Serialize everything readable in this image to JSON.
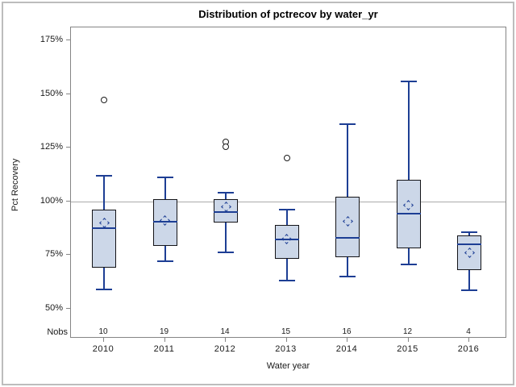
{
  "chart_data": {
    "type": "boxplot",
    "title": "Distribution of pctrecov by water_yr",
    "xlabel": "Water year",
    "ylabel": "Pct Recovery",
    "nobs_label": "Nobs",
    "y_ticks": [
      {
        "value": 50,
        "label": "50%"
      },
      {
        "value": 75,
        "label": "75%"
      },
      {
        "value": 100,
        "label": "100%"
      },
      {
        "value": 125,
        "label": "125%"
      },
      {
        "value": 150,
        "label": "150%"
      },
      {
        "value": 175,
        "label": "175%"
      }
    ],
    "ylim": [
      50,
      175
    ],
    "reference_line": 100,
    "grid": "off",
    "categories": [
      "2010",
      "2011",
      "2012",
      "2013",
      "2014",
      "2015",
      "2016"
    ],
    "nobs": [
      10,
      19,
      14,
      15,
      16,
      12,
      4
    ],
    "boxes": [
      {
        "year": "2010",
        "nobs": 10,
        "whisker_low": 59,
        "q1": 69,
        "median": 87.5,
        "q3": 96,
        "whisker_high": 112,
        "mean": 90,
        "outliers": [
          147
        ]
      },
      {
        "year": "2011",
        "nobs": 19,
        "whisker_low": 72,
        "q1": 79,
        "median": 90.5,
        "q3": 101,
        "whisker_high": 111,
        "mean": 91,
        "outliers": []
      },
      {
        "year": "2012",
        "nobs": 14,
        "whisker_low": 76,
        "q1": 90,
        "median": 95,
        "q3": 101,
        "whisker_high": 104,
        "mean": 97.5,
        "outliers": [
          127.5,
          125.5
        ]
      },
      {
        "year": "2013",
        "nobs": 15,
        "whisker_low": 63,
        "q1": 73,
        "median": 82,
        "q3": 89,
        "whisker_high": 96,
        "mean": 82.5,
        "outliers": [
          120
        ]
      },
      {
        "year": "2014",
        "nobs": 16,
        "whisker_low": 65,
        "q1": 74,
        "median": 83,
        "q3": 102,
        "whisker_high": 136,
        "mean": 90.5,
        "outliers": []
      },
      {
        "year": "2015",
        "nobs": 12,
        "whisker_low": 70.5,
        "q1": 78,
        "median": 94,
        "q3": 110,
        "whisker_high": 156,
        "mean": 98,
        "outliers": []
      },
      {
        "year": "2016",
        "nobs": 4,
        "whisker_low": 58.5,
        "q1": 68,
        "median": 80,
        "q3": 84,
        "whisker_high": 85.5,
        "mean": 76,
        "outliers": []
      }
    ],
    "colors": {
      "box_fill": "#ccd7e8",
      "box_border": "#141418",
      "line_blue": "#1d3e94",
      "reference_line": "#ababab",
      "frame": "#858585",
      "outlier": "#1b1b1b"
    }
  }
}
